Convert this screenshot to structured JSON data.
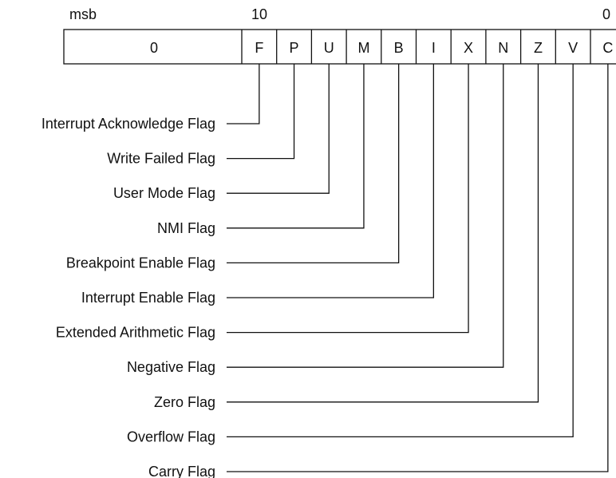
{
  "header": {
    "msb_label": "msb",
    "mid_bit_label": "10",
    "lsb_label": "0"
  },
  "register": {
    "upper_field_value": "0",
    "bits": [
      "F",
      "P",
      "U",
      "M",
      "B",
      "I",
      "X",
      "N",
      "Z",
      "V",
      "C"
    ]
  },
  "flags": [
    {
      "bit": "F",
      "label": "Interrupt Acknowledge Flag"
    },
    {
      "bit": "P",
      "label": "Write Failed Flag"
    },
    {
      "bit": "U",
      "label": "User Mode Flag"
    },
    {
      "bit": "M",
      "label": "NMI Flag"
    },
    {
      "bit": "B",
      "label": "Breakpoint Enable Flag"
    },
    {
      "bit": "I",
      "label": "Interrupt Enable Flag"
    },
    {
      "bit": "X",
      "label": "Extended Arithmetic Flag"
    },
    {
      "bit": "N",
      "label": "Negative Flag"
    },
    {
      "bit": "Z",
      "label": "Zero Flag"
    },
    {
      "bit": "V",
      "label": "Overflow Flag"
    },
    {
      "bit": "C",
      "label": "Carry Flag"
    }
  ]
}
